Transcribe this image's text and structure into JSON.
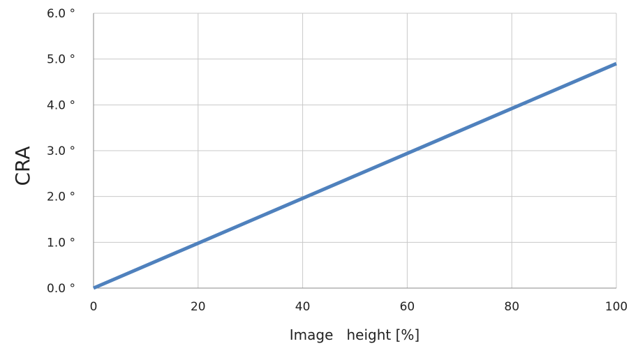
{
  "chart_data": {
    "type": "line",
    "title": "",
    "xlabel": "Image   height [%]",
    "ylabel": "CRA",
    "xlim": [
      0,
      100
    ],
    "ylim": [
      0,
      6
    ],
    "grid": true,
    "legend": "none",
    "x_ticks": [
      "0",
      "20",
      "40",
      "60",
      "80",
      "100"
    ],
    "y_ticks": [
      "0.0 °",
      "1.0 °",
      "2.0 °",
      "3.0 °",
      "4.0 °",
      "5.0 °",
      "6.0 °"
    ],
    "series": [
      {
        "color": "#4f81bd",
        "x": [
          0,
          20,
          40,
          60,
          80,
          100
        ],
        "y": [
          0.0,
          0.98,
          1.96,
          2.94,
          3.92,
          4.9
        ]
      }
    ],
    "grid_color": "#c8c8c8",
    "axis_color": "#888888"
  }
}
